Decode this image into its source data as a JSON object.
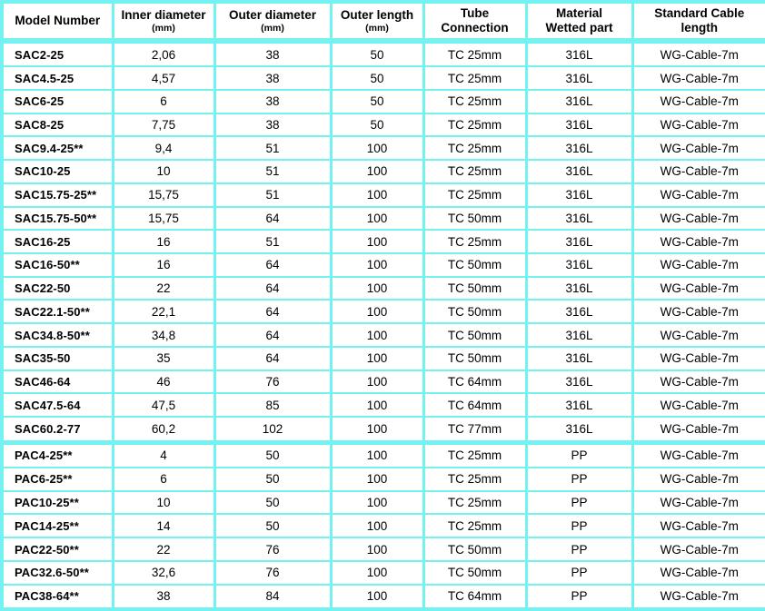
{
  "table": {
    "colors": {
      "grid_border": "#74F2F2",
      "text": "#000000",
      "cell_background": "#FFFFFF"
    },
    "columns": [
      {
        "key": "model-number",
        "label": "Model Number"
      },
      {
        "key": "inner-diameter",
        "label": "Inner diameter",
        "sub": "(mm)"
      },
      {
        "key": "outer-diameter",
        "label": "Outer diameter",
        "sub": "(mm)"
      },
      {
        "key": "outer-length",
        "label": "Outer length",
        "sub": "(mm)"
      },
      {
        "key": "tube-connection",
        "label": "Tube\nConnection"
      },
      {
        "key": "material-wetted-part",
        "label": "Material\nWetted part"
      },
      {
        "key": "standard-cable-length",
        "label": "Standard Cable\nlength"
      }
    ],
    "rows": [
      [
        "SAC2-25",
        "2,06",
        "38",
        "50",
        "TC 25mm",
        "316L",
        "WG-Cable-7m"
      ],
      [
        "SAC4.5-25",
        "4,57",
        "38",
        "50",
        "TC 25mm",
        "316L",
        "WG-Cable-7m"
      ],
      [
        "SAC6-25",
        "6",
        "38",
        "50",
        "TC 25mm",
        "316L",
        "WG-Cable-7m"
      ],
      [
        "SAC8-25",
        "7,75",
        "38",
        "50",
        "TC 25mm",
        "316L",
        "WG-Cable-7m"
      ],
      [
        "SAC9.4-25**",
        "9,4",
        "51",
        "100",
        "TC 25mm",
        "316L",
        "WG-Cable-7m"
      ],
      [
        "SAC10-25",
        "10",
        "51",
        "100",
        "TC 25mm",
        "316L",
        "WG-Cable-7m"
      ],
      [
        "SAC15.75-25**",
        "15,75",
        "51",
        "100",
        "TC 25mm",
        "316L",
        "WG-Cable-7m"
      ],
      [
        "SAC15.75-50**",
        "15,75",
        "64",
        "100",
        "TC 50mm",
        "316L",
        "WG-Cable-7m"
      ],
      [
        "SAC16-25",
        "16",
        "51",
        "100",
        "TC 25mm",
        "316L",
        "WG-Cable-7m"
      ],
      [
        "SAC16-50**",
        "16",
        "64",
        "100",
        "TC 50mm",
        "316L",
        "WG-Cable-7m"
      ],
      [
        "SAC22-50",
        "22",
        "64",
        "100",
        "TC 50mm",
        "316L",
        "WG-Cable-7m"
      ],
      [
        "SAC22.1-50**",
        "22,1",
        "64",
        "100",
        "TC 50mm",
        "316L",
        "WG-Cable-7m"
      ],
      [
        "SAC34.8-50**",
        "34,8",
        "64",
        "100",
        "TC 50mm",
        "316L",
        "WG-Cable-7m"
      ],
      [
        "SAC35-50",
        "35",
        "64",
        "100",
        "TC 50mm",
        "316L",
        "WG-Cable-7m"
      ],
      [
        "SAC46-64",
        "46",
        "76",
        "100",
        "TC 64mm",
        "316L",
        "WG-Cable-7m"
      ],
      [
        "SAC47.5-64",
        "47,5",
        "85",
        "100",
        "TC 64mm",
        "316L",
        "WG-Cable-7m"
      ],
      [
        "SAC60.2-77",
        "60,2",
        "102",
        "100",
        "TC 77mm",
        "316L",
        "WG-Cable-7m"
      ],
      [
        "PAC4-25**",
        "4",
        "50",
        "100",
        "TC 25mm",
        "PP",
        "WG-Cable-7m"
      ],
      [
        "PAC6-25**",
        "6",
        "50",
        "100",
        "TC 25mm",
        "PP",
        "WG-Cable-7m"
      ],
      [
        "PAC10-25**",
        "10",
        "50",
        "100",
        "TC 25mm",
        "PP",
        "WG-Cable-7m"
      ],
      [
        "PAC14-25**",
        "14",
        "50",
        "100",
        "TC 25mm",
        "PP",
        "WG-Cable-7m"
      ],
      [
        "PAC22-50**",
        "22",
        "76",
        "100",
        "TC 50mm",
        "PP",
        "WG-Cable-7m"
      ],
      [
        "PAC32.6-50**",
        "32,6",
        "76",
        "100",
        "TC 50mm",
        "PP",
        "WG-Cable-7m"
      ],
      [
        "PAC38-64**",
        "38",
        "84",
        "100",
        "TC 64mm",
        "PP",
        "WG-Cable-7m"
      ]
    ]
  }
}
